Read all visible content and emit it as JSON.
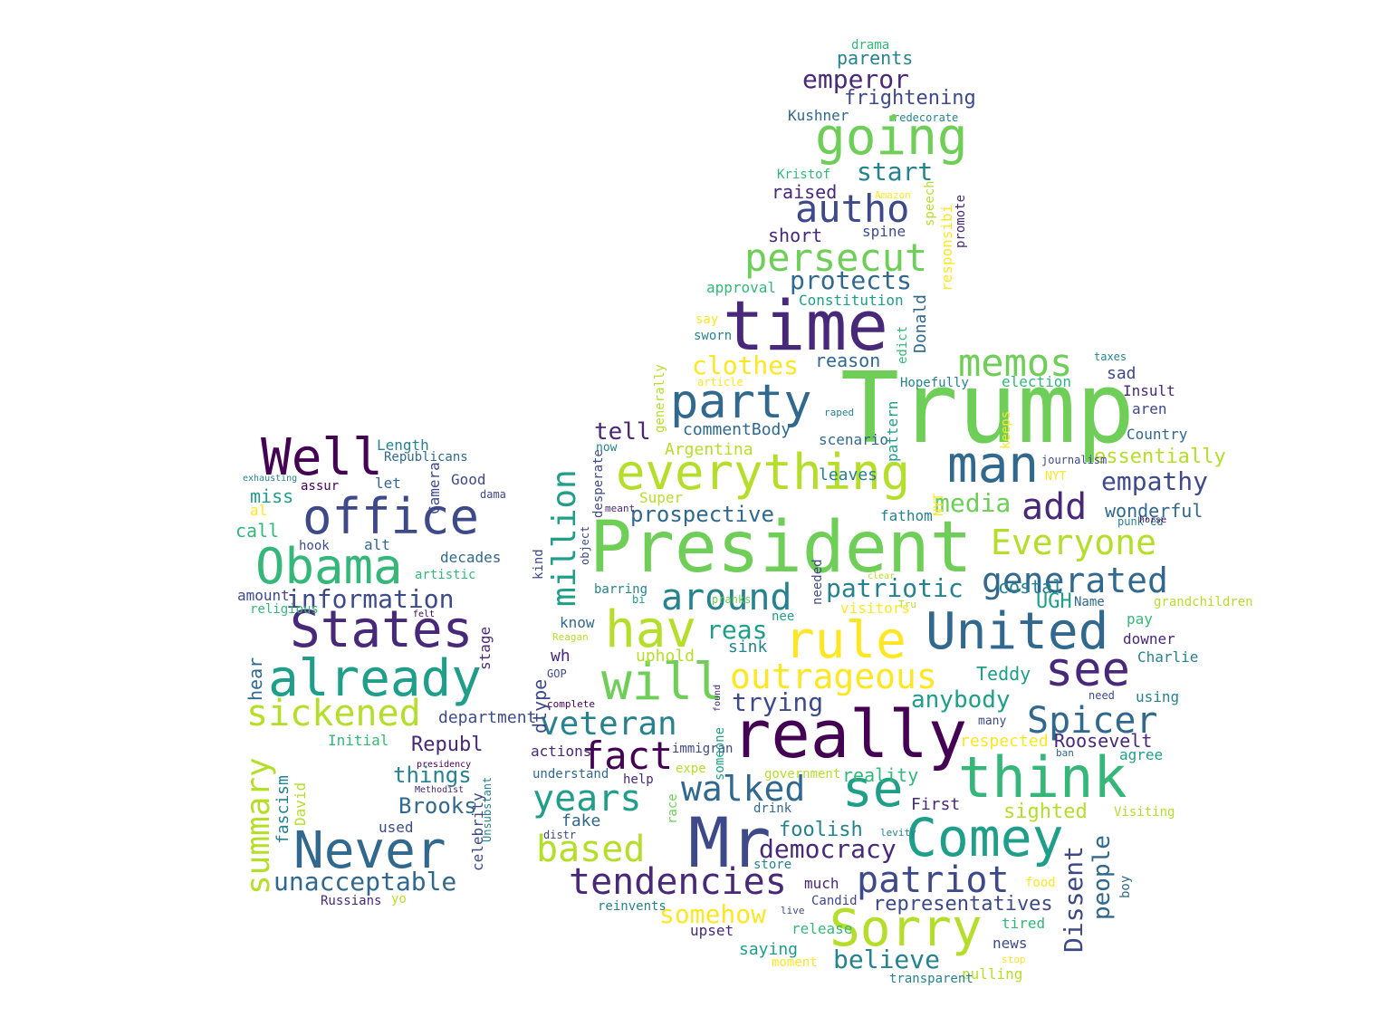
{
  "colors": {
    "background": "#ffffff",
    "palette": [
      "#440154",
      "#482878",
      "#3e4989",
      "#31688e",
      "#26828e",
      "#1f9e89",
      "#35b779",
      "#6ece58",
      "#b5de2b",
      "#fde725"
    ]
  },
  "words": [
    {
      "text": "Trump",
      "color": "#6ece58"
    },
    {
      "text": "President",
      "color": "#6ece58"
    },
    {
      "text": "time",
      "color": "#482878"
    },
    {
      "text": "really",
      "color": "#440154"
    },
    {
      "text": "Mr",
      "color": "#3e4989"
    },
    {
      "text": "everything",
      "color": "#b5de2b"
    },
    {
      "text": "think",
      "color": "#35b779"
    },
    {
      "text": "party",
      "color": "#31688e"
    },
    {
      "text": "going",
      "color": "#6ece58"
    },
    {
      "text": "office",
      "color": "#3e4989"
    },
    {
      "text": "Obama",
      "color": "#35b779"
    },
    {
      "text": "States",
      "color": "#482878"
    },
    {
      "text": "already",
      "color": "#1f9e89"
    },
    {
      "text": "United",
      "color": "#31688e"
    },
    {
      "text": "rule",
      "color": "#fde725"
    },
    {
      "text": "Sorry",
      "color": "#b5de2b"
    },
    {
      "text": "Comey",
      "color": "#1f9e89"
    },
    {
      "text": "Never",
      "color": "#31688e"
    },
    {
      "text": "man",
      "color": "#31688e"
    },
    {
      "text": "Well",
      "color": "#440154"
    },
    {
      "text": "will",
      "color": "#6ece58"
    },
    {
      "text": "hav",
      "color": "#b5de2b"
    },
    {
      "text": "se",
      "color": "#1f9e89"
    },
    {
      "text": "see",
      "color": "#482878"
    },
    {
      "text": "autho",
      "color": "#3e4989"
    },
    {
      "text": "persecut",
      "color": "#6ece58"
    },
    {
      "text": "memos",
      "color": "#6ece58"
    },
    {
      "text": "around",
      "color": "#26828e"
    },
    {
      "text": "generated",
      "color": "#31688e"
    },
    {
      "text": "Everyone",
      "color": "#b5de2b"
    },
    {
      "text": "sickened",
      "color": "#b5de2b"
    },
    {
      "text": "summary",
      "color": "#b5de2b"
    },
    {
      "text": "outrageous",
      "color": "#fde725"
    },
    {
      "text": "patriot",
      "color": "#3e4989"
    },
    {
      "text": "tendencies",
      "color": "#482878"
    },
    {
      "text": "years",
      "color": "#1f9e89"
    },
    {
      "text": "based",
      "color": "#b5de2b"
    },
    {
      "text": "veteran",
      "color": "#26828e"
    },
    {
      "text": "fact",
      "color": "#440154"
    },
    {
      "text": "walked",
      "color": "#31688e"
    },
    {
      "text": "Spicer",
      "color": "#31688e"
    },
    {
      "text": "million",
      "color": "#1f9e89"
    },
    {
      "text": "add",
      "color": "#482878"
    },
    {
      "text": "information",
      "color": "#3e4989"
    },
    {
      "text": "unacceptable",
      "color": "#31688e"
    },
    {
      "text": "Dissent",
      "color": "#3e4989"
    },
    {
      "text": "people",
      "color": "#31688e"
    },
    {
      "text": "democracy",
      "color": "#482878"
    },
    {
      "text": "believe",
      "color": "#26828e"
    },
    {
      "text": "somehow",
      "color": "#fde725"
    },
    {
      "text": "patriotic",
      "color": "#26828e"
    },
    {
      "text": "media",
      "color": "#6ece58"
    },
    {
      "text": "empathy",
      "color": "#3e4989"
    },
    {
      "text": "protects",
      "color": "#31688e"
    },
    {
      "text": "clothes",
      "color": "#fde725"
    },
    {
      "text": "emperor",
      "color": "#482878"
    },
    {
      "text": "start",
      "color": "#26828e"
    },
    {
      "text": "anybody",
      "color": "#1f9e89"
    },
    {
      "text": "trying",
      "color": "#3e4989"
    },
    {
      "text": "reas",
      "color": "#1f9e89"
    },
    {
      "text": "tell",
      "color": "#482878"
    },
    {
      "text": "prospective",
      "color": "#31688e"
    },
    {
      "text": "Brooks",
      "color": "#31688e"
    },
    {
      "text": "Republ",
      "color": "#482878"
    },
    {
      "text": "things",
      "color": "#26828e"
    },
    {
      "text": "foolish",
      "color": "#26828e"
    },
    {
      "text": "representatives",
      "color": "#3e4989"
    },
    {
      "text": "essentially",
      "color": "#b5de2b"
    },
    {
      "text": "wonderful",
      "color": "#31688e"
    },
    {
      "text": "UGH",
      "color": "#1f9e89"
    },
    {
      "text": "costal",
      "color": "#26828e"
    },
    {
      "text": "Roosevelt",
      "color": "#482878"
    },
    {
      "text": "Teddy",
      "color": "#1f9e89"
    },
    {
      "text": "respected",
      "color": "#fde725"
    },
    {
      "text": "sighted",
      "color": "#b5de2b"
    },
    {
      "text": "reality",
      "color": "#35b779"
    },
    {
      "text": "First",
      "color": "#482878"
    },
    {
      "text": "frightening",
      "color": "#3e4989"
    },
    {
      "text": "parents",
      "color": "#26828e"
    },
    {
      "text": "drama",
      "color": "#35b779"
    },
    {
      "text": "Kushner",
      "color": "#31688e"
    },
    {
      "text": "redecorate",
      "color": "#26828e"
    },
    {
      "text": "raised",
      "color": "#482878"
    },
    {
      "text": "short",
      "color": "#482878"
    },
    {
      "text": "spine",
      "color": "#3e4989"
    },
    {
      "text": "Kristof",
      "color": "#35b779"
    },
    {
      "text": "Amazon",
      "color": "#fde725"
    },
    {
      "text": "speech",
      "color": "#b5de2b"
    },
    {
      "text": "responsibi",
      "color": "#fde725"
    },
    {
      "text": "promote",
      "color": "#482878"
    },
    {
      "text": "approval",
      "color": "#35b779"
    },
    {
      "text": "Constitution",
      "color": "#1f9e89"
    },
    {
      "text": "say",
      "color": "#fde725"
    },
    {
      "text": "sworn",
      "color": "#26828e"
    },
    {
      "text": "reason",
      "color": "#31688e"
    },
    {
      "text": "Donald",
      "color": "#31688e"
    },
    {
      "text": "edict",
      "color": "#35b779"
    },
    {
      "text": "Hopefully",
      "color": "#26828e"
    },
    {
      "text": "election",
      "color": "#35b779"
    },
    {
      "text": "sad",
      "color": "#3e4989"
    },
    {
      "text": "Insult",
      "color": "#482878"
    },
    {
      "text": "taxes",
      "color": "#26828e"
    },
    {
      "text": "aren",
      "color": "#3e4989"
    },
    {
      "text": "Country",
      "color": "#31688e"
    },
    {
      "text": "article",
      "color": "#fde725"
    },
    {
      "text": "generally",
      "color": "#b5de2b"
    },
    {
      "text": "raped",
      "color": "#26828e"
    },
    {
      "text": "pattern",
      "color": "#1f9e89"
    },
    {
      "text": "keeps",
      "color": "#fde725"
    },
    {
      "text": "journalism",
      "color": "#3e4989"
    },
    {
      "text": "NYT",
      "color": "#fde725"
    },
    {
      "text": "punk'ed",
      "color": "#26828e"
    },
    {
      "text": "horse",
      "color": "#440154"
    },
    {
      "text": "commentBody",
      "color": "#31688e"
    },
    {
      "text": "Argentina",
      "color": "#b5de2b"
    },
    {
      "text": "scenario",
      "color": "#31688e"
    },
    {
      "text": "now",
      "color": "#26828e"
    },
    {
      "text": "desperate",
      "color": "#3e4989"
    },
    {
      "text": "Super",
      "color": "#b5de2b"
    },
    {
      "text": "leaves",
      "color": "#26828e"
    },
    {
      "text": "fathom",
      "color": "#26828e"
    },
    {
      "text": "meant",
      "color": "#482878"
    },
    {
      "text": "object",
      "color": "#3e4989"
    },
    {
      "text": "kind",
      "color": "#3e4989"
    },
    {
      "text": "clear",
      "color": "#b5de2b"
    },
    {
      "text": "Tru",
      "color": "#b5de2b"
    },
    {
      "text": "Name",
      "color": "#31688e"
    },
    {
      "text": "grandchildren",
      "color": "#b5de2b"
    },
    {
      "text": "visitors",
      "color": "#fde725"
    },
    {
      "text": "nee",
      "color": "#1f9e89"
    },
    {
      "text": "needed",
      "color": "#3e4989"
    },
    {
      "text": "barring",
      "color": "#26828e"
    },
    {
      "text": "bi",
      "color": "#1f9e89"
    },
    {
      "text": "pranks",
      "color": "#6ece58"
    },
    {
      "text": "pay",
      "color": "#35b779"
    },
    {
      "text": "downer",
      "color": "#482878"
    },
    {
      "text": "Charlie",
      "color": "#26828e"
    },
    {
      "text": "need",
      "color": "#3e4989"
    },
    {
      "text": "using",
      "color": "#26828e"
    },
    {
      "text": "many",
      "color": "#3e4989"
    },
    {
      "text": "ban",
      "color": "#31688e"
    },
    {
      "text": "agree",
      "color": "#1f9e89"
    },
    {
      "text": "Visiting",
      "color": "#b5de2b"
    },
    {
      "text": "levity",
      "color": "#26828e"
    },
    {
      "text": "boy",
      "color": "#31688e"
    },
    {
      "text": "food",
      "color": "#fde725"
    },
    {
      "text": "tired",
      "color": "#35b779"
    },
    {
      "text": "news",
      "color": "#3e4989"
    },
    {
      "text": "stop",
      "color": "#fde725"
    },
    {
      "text": "pulling",
      "color": "#b5de2b"
    },
    {
      "text": "transparent",
      "color": "#26828e"
    },
    {
      "text": "saying",
      "color": "#1f9e89"
    },
    {
      "text": "moment",
      "color": "#fde725"
    },
    {
      "text": "release",
      "color": "#35b779"
    },
    {
      "text": "Candid",
      "color": "#3e4989"
    },
    {
      "text": "live",
      "color": "#3e4989"
    },
    {
      "text": "much",
      "color": "#482878"
    },
    {
      "text": "store",
      "color": "#26828e"
    },
    {
      "text": "drink",
      "color": "#31688e"
    },
    {
      "text": "government",
      "color": "#b5de2b"
    },
    {
      "text": "someone",
      "color": "#1f9e89"
    },
    {
      "text": "found",
      "color": "#482878"
    },
    {
      "text": "immigran",
      "color": "#3e4989"
    },
    {
      "text": "expe",
      "color": "#b5de2b"
    },
    {
      "text": "help",
      "color": "#482878"
    },
    {
      "text": "race",
      "color": "#6ece58"
    },
    {
      "text": "fake",
      "color": "#31688e"
    },
    {
      "text": "upset",
      "color": "#482878"
    },
    {
      "text": "reinvents",
      "color": "#26828e"
    },
    {
      "text": "distr",
      "color": "#3e4989"
    },
    {
      "text": "actions",
      "color": "#482878"
    },
    {
      "text": "understand",
      "color": "#31688e"
    },
    {
      "text": "sink",
      "color": "#26828e"
    },
    {
      "text": "uphold",
      "color": "#b5de2b"
    },
    {
      "text": "wh",
      "color": "#482878"
    },
    {
      "text": "know",
      "color": "#31688e"
    },
    {
      "text": "Reagan",
      "color": "#b5de2b"
    },
    {
      "text": "GOP",
      "color": "#3e4989"
    },
    {
      "text": "complete",
      "color": "#440154"
    },
    {
      "text": "dtype",
      "color": "#3e4989"
    },
    {
      "text": "Length",
      "color": "#26828e"
    },
    {
      "text": "Republicans",
      "color": "#31688e"
    },
    {
      "text": "exhausting",
      "color": "#26828e"
    },
    {
      "text": "assur",
      "color": "#440154"
    },
    {
      "text": "let",
      "color": "#31688e"
    },
    {
      "text": "Camera",
      "color": "#3e4989"
    },
    {
      "text": "Good",
      "color": "#3e4989"
    },
    {
      "text": "dama",
      "color": "#3e4989"
    },
    {
      "text": "miss",
      "color": "#1f9e89"
    },
    {
      "text": "al",
      "color": "#fde725"
    },
    {
      "text": "call",
      "color": "#35b779"
    },
    {
      "text": "hook",
      "color": "#3e4989"
    },
    {
      "text": "alt",
      "color": "#31688e"
    },
    {
      "text": "decades",
      "color": "#31688e"
    },
    {
      "text": "artistic",
      "color": "#35b779"
    },
    {
      "text": "stage",
      "color": "#482878"
    },
    {
      "text": "amount",
      "color": "#3e4989"
    },
    {
      "text": "religious",
      "color": "#35b779"
    },
    {
      "text": "felt",
      "color": "#440154"
    },
    {
      "text": "hear",
      "color": "#31688e"
    },
    {
      "text": "department",
      "color": "#3e4989"
    },
    {
      "text": "Initial",
      "color": "#35b779"
    },
    {
      "text": "David",
      "color": "#b5de2b"
    },
    {
      "text": "fascism",
      "color": "#26828e"
    },
    {
      "text": "presidency",
      "color": "#440154"
    },
    {
      "text": "Methodist",
      "color": "#482878"
    },
    {
      "text": "Unsubstant",
      "color": "#26828e"
    },
    {
      "text": "used",
      "color": "#3e4989"
    },
    {
      "text": "celebrity",
      "color": "#3e4989"
    },
    {
      "text": "Russians",
      "color": "#482878"
    },
    {
      "text": "yo",
      "color": "#b5de2b"
    },
    {
      "text": "Putin",
      "color": "#26828e"
    },
    {
      "text": "stomach",
      "color": "#1f9e89"
    }
  ]
}
